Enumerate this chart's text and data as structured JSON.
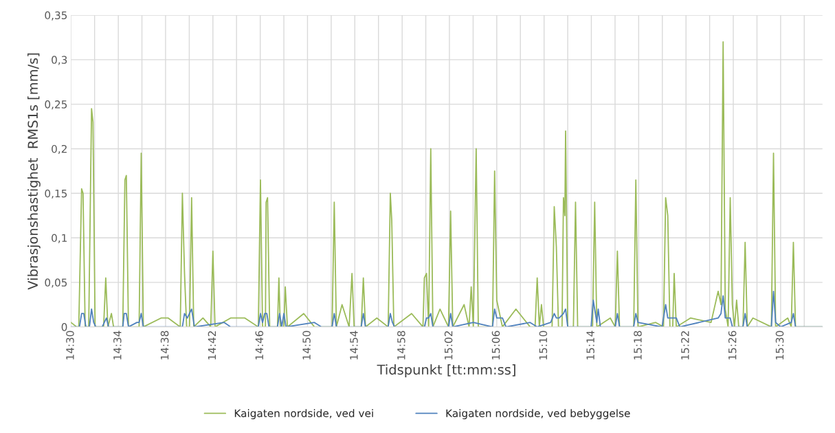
{
  "chart_data": {
    "type": "line",
    "xlabel": "Tidspunkt [tt:mm:ss]",
    "ylabel": "Vibrasjonshastighet  RMS1s [mm/s]",
    "xlim": [
      14.5,
      15.559
    ],
    "xticks": [
      {
        "value": 14.5,
        "label": "14:30"
      },
      {
        "value": 14.5333,
        "label": null
      },
      {
        "value": 14.5667,
        "label": "14:34"
      },
      {
        "value": 14.6,
        "label": null
      },
      {
        "value": 14.6333,
        "label": "14:38"
      },
      {
        "value": 14.6667,
        "label": null
      },
      {
        "value": 14.7,
        "label": "14:42"
      },
      {
        "value": 14.7333,
        "label": null
      },
      {
        "value": 14.7667,
        "label": "14:46"
      },
      {
        "value": 14.8,
        "label": null
      },
      {
        "value": 14.8333,
        "label": "14:50"
      },
      {
        "value": 14.8667,
        "label": null
      },
      {
        "value": 14.9,
        "label": "14:54"
      },
      {
        "value": 14.9333,
        "label": null
      },
      {
        "value": 14.9667,
        "label": "14:58"
      },
      {
        "value": 15.0,
        "label": null
      },
      {
        "value": 15.0333,
        "label": "15:02"
      },
      {
        "value": 15.0667,
        "label": null
      },
      {
        "value": 15.1,
        "label": "15:06"
      },
      {
        "value": 15.1333,
        "label": null
      },
      {
        "value": 15.1667,
        "label": "15:10"
      },
      {
        "value": 15.2,
        "label": null
      },
      {
        "value": 15.2333,
        "label": "15:14"
      },
      {
        "value": 15.2667,
        "label": null
      },
      {
        "value": 15.3,
        "label": "15:18"
      },
      {
        "value": 15.3333,
        "label": null
      },
      {
        "value": 15.3667,
        "label": "15:22"
      },
      {
        "value": 15.4,
        "label": null
      },
      {
        "value": 15.4333,
        "label": "15:26"
      },
      {
        "value": 15.4667,
        "label": null
      },
      {
        "value": 15.5,
        "label": "15:30"
      },
      {
        "value": 15.5333,
        "label": null
      }
    ],
    "ylim": [
      0,
      0.35
    ],
    "yticks": [
      {
        "value": 0,
        "label": "0"
      },
      {
        "value": 0.05,
        "label": "0,05"
      },
      {
        "value": 0.1,
        "label": "0,1"
      },
      {
        "value": 0.15,
        "label": "0,15"
      },
      {
        "value": 0.2,
        "label": "0,2"
      },
      {
        "value": 0.25,
        "label": "0,25"
      },
      {
        "value": 0.3,
        "label": "0,3"
      },
      {
        "value": 0.35,
        "label": "0,35"
      }
    ],
    "grid": true,
    "legend": "bottom",
    "marker": "none",
    "line_style": "solid",
    "series": [
      {
        "name": "Kaigaten nordside, ved vei",
        "color": "#9bbb59",
        "x": [
          14.5,
          14.508,
          14.511,
          14.515,
          14.517,
          14.52,
          14.525,
          14.529,
          14.531,
          14.534,
          14.546,
          14.549,
          14.552,
          14.557,
          14.56,
          14.573,
          14.576,
          14.578,
          14.581,
          14.596,
          14.599,
          14.602,
          14.627,
          14.637,
          14.654,
          14.657,
          14.66,
          14.663,
          14.667,
          14.67,
          14.673,
          14.686,
          14.697,
          14.7,
          14.703,
          14.725,
          14.745,
          14.764,
          14.767,
          14.77,
          14.774,
          14.775,
          14.777,
          14.78,
          14.791,
          14.793,
          14.795,
          14.8,
          14.802,
          14.805,
          14.828,
          14.843,
          14.868,
          14.871,
          14.874,
          14.882,
          14.892,
          14.896,
          14.899,
          14.909,
          14.912,
          14.915,
          14.931,
          14.947,
          14.95,
          14.952,
          14.955,
          14.98,
          14.996,
          14.998,
          15.001,
          15.004,
          15.007,
          15.01,
          15.02,
          15.032,
          15.035,
          15.038,
          15.054,
          15.061,
          15.064,
          15.067,
          15.071,
          15.074,
          15.094,
          15.097,
          15.1,
          15.108,
          15.127,
          15.147,
          15.154,
          15.157,
          15.16,
          15.163,
          15.166,
          15.178,
          15.181,
          15.184,
          15.187,
          15.192,
          15.194,
          15.196,
          15.197,
          15.2,
          15.208,
          15.211,
          15.214,
          15.235,
          15.238,
          15.241,
          15.26,
          15.267,
          15.27,
          15.273,
          15.293,
          15.296,
          15.299,
          15.324,
          15.335,
          15.338,
          15.341,
          15.344,
          15.348,
          15.35,
          15.353,
          15.373,
          15.402,
          15.412,
          15.416,
          15.419,
          15.422,
          15.426,
          15.429,
          15.432,
          15.435,
          15.438,
          15.441,
          15.447,
          15.45,
          15.453,
          15.461,
          15.487,
          15.49,
          15.493,
          15.51,
          15.515,
          15.518,
          15.521,
          15.559
        ],
        "values": [
          0.005,
          0,
          0,
          0.155,
          0.15,
          0,
          0,
          0.245,
          0.23,
          0,
          0,
          0.055,
          0,
          0.015,
          0,
          0,
          0.165,
          0.17,
          0,
          0,
          0.195,
          0,
          0.01,
          0.01,
          0,
          0.15,
          0.06,
          0,
          0,
          0.145,
          0,
          0.01,
          0,
          0.085,
          0,
          0.01,
          0.01,
          0,
          0.165,
          0,
          0,
          0.14,
          0.145,
          0,
          0,
          0.055,
          0,
          0,
          0.045,
          0,
          0.015,
          0,
          0,
          0.14,
          0,
          0.025,
          0,
          0.06,
          0,
          0,
          0.055,
          0,
          0.01,
          0,
          0.15,
          0.12,
          0,
          0.015,
          0,
          0.055,
          0.06,
          0,
          0.2,
          0,
          0.02,
          0,
          0.13,
          0,
          0.025,
          0,
          0.045,
          0,
          0.2,
          0,
          0,
          0.175,
          0.03,
          0,
          0.02,
          0,
          0,
          0.055,
          0,
          0.025,
          0,
          0,
          0.135,
          0.09,
          0,
          0,
          0.145,
          0.125,
          0.22,
          0,
          0,
          0.14,
          0,
          0,
          0.14,
          0,
          0.01,
          0,
          0.085,
          0,
          0,
          0.165,
          0,
          0.005,
          0,
          0.145,
          0.125,
          0,
          0,
          0.06,
          0,
          0.01,
          0.005,
          0.04,
          0.025,
          0.32,
          0.02,
          0,
          0.145,
          0.025,
          0,
          0.03,
          0,
          0,
          0.095,
          0,
          0.01,
          0,
          0.195,
          0,
          0.01,
          0,
          0.095,
          0,
          0
        ]
      },
      {
        "name": "Kaigaten nordside, ved bebyggelse",
        "color": "#4f81bd",
        "x": [
          14.5,
          14.512,
          14.515,
          14.518,
          14.521,
          14.526,
          14.529,
          14.532,
          14.535,
          14.544,
          14.547,
          14.55,
          14.553,
          14.573,
          14.575,
          14.578,
          14.581,
          14.593,
          14.596,
          14.599,
          14.602,
          14.657,
          14.66,
          14.664,
          14.667,
          14.67,
          14.674,
          14.716,
          14.725,
          14.764,
          14.767,
          14.77,
          14.773,
          14.776,
          14.779,
          14.791,
          14.794,
          14.797,
          14.8,
          14.803,
          14.843,
          14.853,
          14.868,
          14.871,
          14.874,
          14.909,
          14.912,
          14.915,
          14.947,
          14.95,
          14.953,
          14.956,
          14.998,
          15.001,
          15.004,
          15.007,
          15.01,
          15.032,
          15.035,
          15.038,
          15.067,
          15.094,
          15.097,
          15.1,
          15.108,
          15.113,
          15.147,
          15.157,
          15.176,
          15.181,
          15.184,
          15.188,
          15.194,
          15.197,
          15.2,
          15.233,
          15.236,
          15.239,
          15.241,
          15.243,
          15.246,
          15.267,
          15.27,
          15.273,
          15.293,
          15.296,
          15.299,
          15.333,
          15.338,
          15.341,
          15.353,
          15.358,
          15.412,
          15.416,
          15.419,
          15.422,
          15.429,
          15.432,
          15.447,
          15.45,
          15.453,
          15.487,
          15.49,
          15.493,
          15.5,
          15.515,
          15.518,
          15.521,
          15.559
        ],
        "values": [
          0,
          0,
          0.015,
          0.015,
          0,
          0,
          0.02,
          0.005,
          0,
          0,
          0.005,
          0.01,
          0,
          0,
          0.015,
          0.015,
          0,
          0.005,
          0.005,
          0.015,
          0,
          0,
          0.015,
          0.01,
          0.015,
          0.02,
          0,
          0.005,
          0,
          0,
          0.015,
          0.005,
          0.015,
          0.015,
          0,
          0,
          0.015,
          0,
          0.015,
          0,
          0.005,
          0,
          0,
          0.015,
          0,
          0,
          0.015,
          0,
          0,
          0.015,
          0.005,
          0,
          0,
          0.01,
          0.01,
          0.015,
          0,
          0,
          0.015,
          0,
          0.005,
          0,
          0.02,
          0.01,
          0.01,
          0,
          0.005,
          0,
          0.005,
          0.015,
          0.01,
          0.01,
          0.015,
          0.02,
          0,
          0,
          0.03,
          0.015,
          0.005,
          0.02,
          0,
          0,
          0.015,
          0,
          0,
          0.015,
          0.005,
          0,
          0.025,
          0.01,
          0.01,
          0,
          0.01,
          0.015,
          0.035,
          0.01,
          0.01,
          0,
          0,
          0.015,
          0,
          0,
          0.04,
          0.005,
          0,
          0.005,
          0.015,
          0,
          0
        ]
      }
    ]
  }
}
